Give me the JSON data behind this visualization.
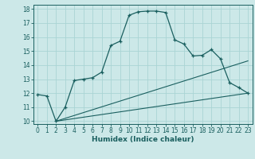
{
  "xlabel": "Humidex (Indice chaleur)",
  "bg_color": "#cce8e8",
  "line_color": "#1a5f5f",
  "grid_color": "#aad4d4",
  "xlim": [
    -0.5,
    23.5
  ],
  "ylim": [
    9.8,
    18.3
  ],
  "xticks": [
    0,
    1,
    2,
    3,
    4,
    5,
    6,
    7,
    8,
    9,
    10,
    11,
    12,
    13,
    14,
    15,
    16,
    17,
    18,
    19,
    20,
    21,
    22,
    23
  ],
  "yticks": [
    10,
    11,
    12,
    13,
    14,
    15,
    16,
    17,
    18
  ],
  "curve1_x": [
    0,
    1,
    2,
    3,
    4,
    5,
    6,
    7,
    8,
    9,
    10,
    11,
    12,
    13,
    14,
    15,
    16,
    17,
    18,
    19,
    20,
    21,
    22,
    23
  ],
  "curve1_y": [
    11.9,
    11.8,
    10.0,
    11.0,
    12.9,
    13.0,
    13.1,
    13.5,
    15.4,
    15.7,
    17.55,
    17.8,
    17.85,
    17.85,
    17.75,
    15.8,
    15.5,
    14.65,
    14.7,
    15.1,
    14.45,
    12.75,
    12.4,
    12.0
  ],
  "curve2_x": [
    2,
    23
  ],
  "curve2_y": [
    10.0,
    12.0
  ],
  "curve3_x": [
    2,
    23
  ],
  "curve3_y": [
    10.0,
    14.3
  ],
  "label_fontsize": 6.5,
  "tick_fontsize": 5.5
}
